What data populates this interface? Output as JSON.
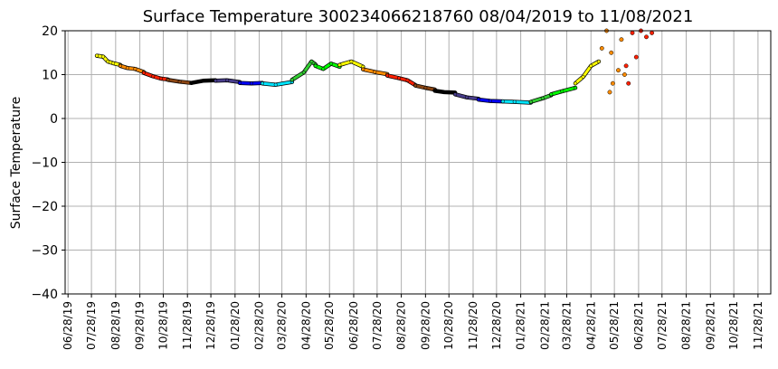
{
  "chart_data": {
    "type": "scatter",
    "title": "Surface Temperature 300234066218760  08/04/2019 to 11/08/2021",
    "ylabel": "Surface Temperature",
    "xlabel": "",
    "ylim": [
      -40,
      20
    ],
    "yticks": [
      20,
      10,
      0,
      -10,
      -20,
      -30,
      -40
    ],
    "grid": true,
    "legend": "none",
    "x_start": "06/28/19",
    "x_end": "11/28/21",
    "xticks": [
      "06/28/19",
      "07/28/19",
      "08/28/19",
      "09/28/19",
      "10/28/19",
      "11/28/19",
      "12/28/19",
      "01/28/20",
      "02/28/20",
      "03/28/20",
      "04/28/20",
      "05/28/20",
      "06/28/20",
      "07/28/20",
      "08/28/20",
      "09/28/20",
      "10/28/20",
      "11/28/20",
      "12/28/20",
      "01/28/21",
      "02/28/21",
      "03/28/21",
      "04/28/21",
      "05/28/21",
      "06/28/21",
      "07/28/21",
      "08/28/21",
      "09/28/21",
      "10/28/21",
      "11/28/21"
    ],
    "color_cycle": [
      "#ffff00",
      "#ff8c00",
      "#ff2000",
      "#8b4513",
      "#000000",
      "#483d8b",
      "#0000ff",
      "#00e5ff",
      "#32cd32",
      "#00ff00"
    ],
    "series_segments": [
      {
        "start": "08/04/19",
        "end": "09/03/19",
        "color": "#ffff00",
        "points": [
          [
            "08/04/19",
            14.3
          ],
          [
            "08/12/19",
            14.1
          ],
          [
            "08/18/19",
            13.0
          ],
          [
            "08/25/19",
            12.6
          ],
          [
            "09/03/19",
            12.2
          ]
        ]
      },
      {
        "start": "09/03/19",
        "end": "10/03/19",
        "color": "#ff8c00",
        "points": [
          [
            "09/03/19",
            12.0
          ],
          [
            "09/12/19",
            11.5
          ],
          [
            "09/22/19",
            11.3
          ],
          [
            "10/03/19",
            10.6
          ]
        ]
      },
      {
        "start": "10/03/19",
        "end": "11/03/19",
        "color": "#ff2000",
        "points": [
          [
            "10/03/19",
            10.4
          ],
          [
            "10/15/19",
            9.6
          ],
          [
            "10/25/19",
            9.1
          ],
          [
            "11/03/19",
            8.9
          ]
        ]
      },
      {
        "start": "11/03/19",
        "end": "12/03/19",
        "color": "#8b4513",
        "points": [
          [
            "11/03/19",
            8.8
          ],
          [
            "11/18/19",
            8.4
          ],
          [
            "12/03/19",
            8.1
          ]
        ]
      },
      {
        "start": "12/03/19",
        "end": "01/03/20",
        "color": "#000000",
        "points": [
          [
            "12/03/19",
            8.1
          ],
          [
            "12/18/19",
            8.6
          ],
          [
            "01/03/20",
            8.7
          ]
        ]
      },
      {
        "start": "01/03/20",
        "end": "02/03/20",
        "color": "#483d8b",
        "points": [
          [
            "01/03/20",
            8.6
          ],
          [
            "01/18/20",
            8.7
          ],
          [
            "02/03/20",
            8.3
          ]
        ]
      },
      {
        "start": "02/03/20",
        "end": "03/03/20",
        "color": "#0000ff",
        "points": [
          [
            "02/03/20",
            8.1
          ],
          [
            "02/18/20",
            8.0
          ],
          [
            "03/03/20",
            8.1
          ]
        ]
      },
      {
        "start": "03/03/20",
        "end": "04/10/20",
        "color": "#00e5ff",
        "points": [
          [
            "03/03/20",
            8.0
          ],
          [
            "03/20/20",
            7.7
          ],
          [
            "04/10/20",
            8.3
          ]
        ]
      },
      {
        "start": "04/10/20",
        "end": "05/10/20",
        "color": "#32cd32",
        "points": [
          [
            "04/10/20",
            8.8
          ],
          [
            "04/25/20",
            10.5
          ],
          [
            "05/05/20",
            13.0
          ],
          [
            "05/10/20",
            12.3
          ]
        ]
      },
      {
        "start": "05/10/20",
        "end": "06/10/20",
        "color": "#00ff00",
        "points": [
          [
            "05/10/20",
            12.0
          ],
          [
            "05/20/20",
            11.3
          ],
          [
            "05/30/20",
            12.5
          ],
          [
            "06/10/20",
            11.8
          ]
        ]
      },
      {
        "start": "06/10/20",
        "end": "07/10/20",
        "color": "#ffff00",
        "points": [
          [
            "06/10/20",
            12.2
          ],
          [
            "06/25/20",
            13.0
          ],
          [
            "07/10/20",
            11.8
          ]
        ]
      },
      {
        "start": "07/10/20",
        "end": "08/10/20",
        "color": "#ff8c00",
        "points": [
          [
            "07/10/20",
            11.2
          ],
          [
            "07/25/20",
            10.6
          ],
          [
            "08/10/20",
            10.1
          ]
        ]
      },
      {
        "start": "08/10/20",
        "end": "09/15/20",
        "color": "#ff2000",
        "points": [
          [
            "08/10/20",
            9.8
          ],
          [
            "08/25/20",
            9.2
          ],
          [
            "09/05/20",
            8.7
          ],
          [
            "09/15/20",
            7.6
          ]
        ]
      },
      {
        "start": "09/15/20",
        "end": "10/10/20",
        "color": "#8b4513",
        "points": [
          [
            "09/15/20",
            7.5
          ],
          [
            "09/28/20",
            7.0
          ],
          [
            "10/10/20",
            6.6
          ]
        ]
      },
      {
        "start": "10/10/20",
        "end": "11/05/20",
        "color": "#000000",
        "points": [
          [
            "10/10/20",
            6.3
          ],
          [
            "10/22/20",
            6.0
          ],
          [
            "11/05/20",
            5.9
          ]
        ]
      },
      {
        "start": "11/05/20",
        "end": "12/05/20",
        "color": "#483d8b",
        "points": [
          [
            "11/05/20",
            5.5
          ],
          [
            "11/20/20",
            4.8
          ],
          [
            "12/05/20",
            4.5
          ]
        ]
      },
      {
        "start": "12/05/20",
        "end": "01/05/21",
        "color": "#0000ff",
        "points": [
          [
            "12/05/20",
            4.3
          ],
          [
            "12/20/20",
            4.0
          ],
          [
            "01/05/21",
            3.9
          ]
        ]
      },
      {
        "start": "01/05/21",
        "end": "02/10/21",
        "color": "#00e5ff",
        "points": [
          [
            "01/05/21",
            3.9
          ],
          [
            "01/20/21",
            3.8
          ],
          [
            "02/10/21",
            3.6
          ]
        ]
      },
      {
        "start": "02/10/21",
        "end": "03/08/21",
        "color": "#32cd32",
        "points": [
          [
            "02/10/21",
            3.8
          ],
          [
            "02/25/21",
            4.6
          ],
          [
            "03/08/21",
            5.3
          ]
        ]
      },
      {
        "start": "03/08/21",
        "end": "04/08/21",
        "color": "#00ff00",
        "points": [
          [
            "03/08/21",
            5.5
          ],
          [
            "03/22/21",
            6.2
          ],
          [
            "04/08/21",
            7.0
          ]
        ]
      },
      {
        "start": "04/08/21",
        "end": "05/08/21",
        "color": "#ffff00",
        "points": [
          [
            "04/08/21",
            8.0
          ],
          [
            "04/18/21",
            9.5
          ],
          [
            "04/28/21",
            12.0
          ],
          [
            "05/08/21",
            13.0
          ]
        ]
      },
      {
        "start": "05/08/21",
        "end": "06/10/21",
        "color": "#ff8c00",
        "points": [
          [
            "05/12/21",
            16.0
          ],
          [
            "05/18/21",
            20.0
          ],
          [
            "05/22/21",
            6.0
          ],
          [
            "05/24/21",
            15.0
          ],
          [
            "05/26/21",
            8.0
          ],
          [
            "06/02/21",
            11.0
          ],
          [
            "06/06/21",
            18.0
          ],
          [
            "06/10/21",
            10.0
          ]
        ]
      },
      {
        "start": "06/10/21",
        "end": "07/15/21",
        "color": "#ff2000",
        "points": [
          [
            "06/12/21",
            12.0
          ],
          [
            "06/15/21",
            8.0
          ],
          [
            "06/20/21",
            19.5
          ],
          [
            "06/25/21",
            14.0
          ],
          [
            "07/01/21",
            20.0
          ],
          [
            "07/08/21",
            18.6
          ],
          [
            "07/15/21",
            19.5
          ]
        ]
      }
    ]
  }
}
